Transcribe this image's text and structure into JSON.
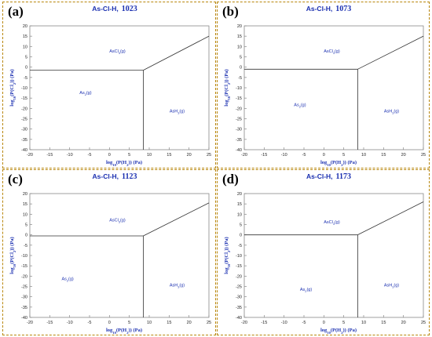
{
  "chart_data": [
    {
      "type": "line",
      "label": "(a)",
      "title_prefix": "As-Cl-H,",
      "temperature": "1023",
      "xlabel": "log10(P(H2)) (Pa)",
      "ylabel": "log10(P(Cl2)) (Pa)",
      "xlim": [
        -20,
        25
      ],
      "ylim": [
        -40,
        20
      ],
      "xticks": [
        -20,
        -15,
        -10,
        -5,
        0,
        5,
        10,
        15,
        20,
        25
      ],
      "yticks": [
        20,
        15,
        10,
        5,
        0,
        -5,
        -10,
        -15,
        -20,
        -25,
        -30,
        -35,
        -40
      ],
      "grid": false,
      "boundaries": [
        {
          "x": [
            -20,
            8.5
          ],
          "y": [
            -1.5,
            -1.5
          ]
        },
        {
          "x": [
            8.5,
            8.5
          ],
          "y": [
            -1.5,
            -40
          ]
        },
        {
          "x": [
            8.5,
            25
          ],
          "y": [
            -1.5,
            15
          ]
        }
      ],
      "regions": [
        {
          "name": "AsCl3(g)",
          "x": 2,
          "y": 7
        },
        {
          "name": "As2(g)",
          "x": -6,
          "y": -13
        },
        {
          "name": "AsH3(g)",
          "x": 17,
          "y": -22
        }
      ]
    },
    {
      "type": "line",
      "label": "(b)",
      "title_prefix": "As-Cl-H,",
      "temperature": "1073",
      "xlabel": "log10(P(H2)) (Pa)",
      "ylabel": "log10(P(Cl2)) (Pa)",
      "xlim": [
        -20,
        25
      ],
      "ylim": [
        -40,
        20
      ],
      "xticks": [
        -20,
        -15,
        -10,
        -5,
        0,
        5,
        10,
        15,
        20,
        25
      ],
      "yticks": [
        20,
        15,
        10,
        5,
        0,
        -5,
        -10,
        -15,
        -20,
        -25,
        -30,
        -35,
        -40
      ],
      "grid": false,
      "boundaries": [
        {
          "x": [
            -20,
            8.5
          ],
          "y": [
            -1,
            -1
          ]
        },
        {
          "x": [
            8.5,
            8.5
          ],
          "y": [
            -1,
            -40
          ]
        },
        {
          "x": [
            8.5,
            25
          ],
          "y": [
            -1,
            15
          ]
        }
      ],
      "regions": [
        {
          "name": "AsCl3(g)",
          "x": 2,
          "y": 7
        },
        {
          "name": "As2(g)",
          "x": -6,
          "y": -19
        },
        {
          "name": "AsH3(g)",
          "x": 17,
          "y": -22
        }
      ]
    },
    {
      "type": "line",
      "label": "(c)",
      "title_prefix": "As-Cl-H,",
      "temperature": "1123",
      "xlabel": "log10(P(H2)) (Pa)",
      "ylabel": "log10(P(Cl2)) (Pa)",
      "xlim": [
        -20,
        25
      ],
      "ylim": [
        -40,
        20
      ],
      "xticks": [
        -20,
        -15,
        -10,
        -5,
        0,
        5,
        10,
        15,
        20,
        25
      ],
      "yticks": [
        20,
        15,
        10,
        5,
        0,
        -5,
        -10,
        -15,
        -20,
        -25,
        -30,
        -35,
        -40
      ],
      "grid": false,
      "boundaries": [
        {
          "x": [
            -20,
            8.5
          ],
          "y": [
            -0.5,
            -0.5
          ]
        },
        {
          "x": [
            8.5,
            8.5
          ],
          "y": [
            -0.5,
            -40
          ]
        },
        {
          "x": [
            8.5,
            25
          ],
          "y": [
            -0.5,
            15.5
          ]
        }
      ],
      "regions": [
        {
          "name": "AsCl3(g)",
          "x": 2,
          "y": 6.5
        },
        {
          "name": "As2(g)",
          "x": -10.5,
          "y": -22
        },
        {
          "name": "AsH3(g)",
          "x": 17,
          "y": -25
        }
      ]
    },
    {
      "type": "line",
      "label": "(d)",
      "title_prefix": "As-Cl-H,",
      "temperature": "1173",
      "xlabel": "log10(P(H2)) (Pa)",
      "ylabel": "log10(P(Cl2)) (Pa)",
      "xlim": [
        -20,
        25
      ],
      "ylim": [
        -40,
        20
      ],
      "xticks": [
        -20,
        -15,
        -10,
        -5,
        0,
        5,
        10,
        15,
        20,
        25
      ],
      "yticks": [
        20,
        15,
        10,
        5,
        0,
        -5,
        -10,
        -15,
        -20,
        -25,
        -30,
        -35,
        -40
      ],
      "grid": false,
      "boundaries": [
        {
          "x": [
            -20,
            8.5
          ],
          "y": [
            0,
            0
          ]
        },
        {
          "x": [
            8.5,
            8.5
          ],
          "y": [
            0,
            -40
          ]
        },
        {
          "x": [
            8.5,
            25
          ],
          "y": [
            0,
            16
          ]
        }
      ],
      "regions": [
        {
          "name": "AsCl3(g)",
          "x": 2,
          "y": 5.5
        },
        {
          "name": "As2(g)",
          "x": -4.5,
          "y": -27
        },
        {
          "name": "AsH3(g)",
          "x": 17,
          "y": -25
        }
      ]
    }
  ]
}
